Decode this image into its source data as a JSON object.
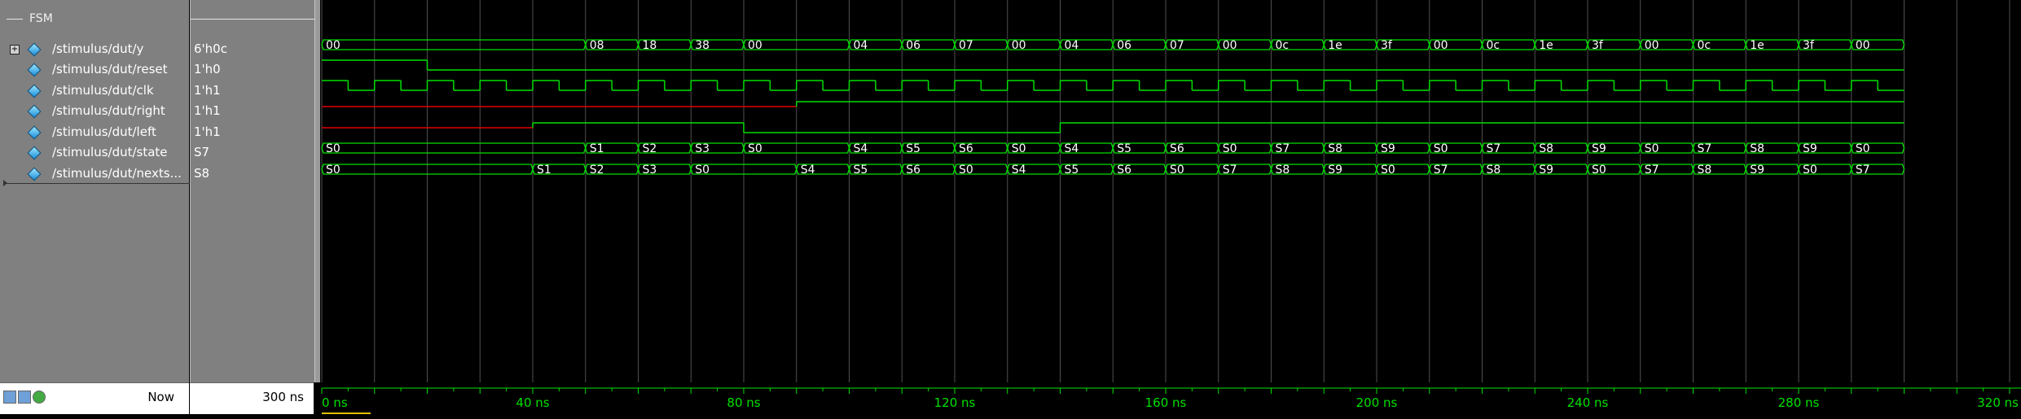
{
  "group": {
    "label": "FSM"
  },
  "signals": [
    {
      "name": "/stimulus/dut/y",
      "value": "6'h0c",
      "expandable": true,
      "expander_glyph": "+"
    },
    {
      "name": "/stimulus/dut/reset",
      "value": "1'h0"
    },
    {
      "name": "/stimulus/dut/clk",
      "value": "1'h1"
    },
    {
      "name": "/stimulus/dut/right",
      "value": "1'h1"
    },
    {
      "name": "/stimulus/dut/left",
      "value": "1'h1"
    },
    {
      "name": "/stimulus/dut/state",
      "value": "S7"
    },
    {
      "name": "/stimulus/dut/nexts...",
      "value": "S8"
    }
  ],
  "cursor": {
    "now_label": "Now",
    "now_time": "300 ns"
  },
  "timeline": {
    "unit": "ns",
    "end_ns": 320,
    "tick_labels": [
      "0 ns",
      "40 ns",
      "80 ns",
      "120 ns",
      "160 ns",
      "200 ns",
      "240 ns",
      "280 ns",
      "320 ns"
    ],
    "label_every_ns": 40,
    "minor_tick_every_ns": 5
  },
  "waves": {
    "sim_end_ns": 300,
    "y": {
      "kind": "bus",
      "segments": [
        {
          "t0": 0,
          "t1": 50,
          "v": "00"
        },
        {
          "t0": 50,
          "t1": 60,
          "v": "08"
        },
        {
          "t0": 60,
          "t1": 70,
          "v": "18"
        },
        {
          "t0": 70,
          "t1": 80,
          "v": "38"
        },
        {
          "t0": 80,
          "t1": 100,
          "v": "00"
        },
        {
          "t0": 100,
          "t1": 110,
          "v": "04"
        },
        {
          "t0": 110,
          "t1": 120,
          "v": "06"
        },
        {
          "t0": 120,
          "t1": 130,
          "v": "07"
        },
        {
          "t0": 130,
          "t1": 140,
          "v": "00"
        },
        {
          "t0": 140,
          "t1": 150,
          "v": "04"
        },
        {
          "t0": 150,
          "t1": 160,
          "v": "06"
        },
        {
          "t0": 160,
          "t1": 170,
          "v": "07"
        },
        {
          "t0": 170,
          "t1": 180,
          "v": "00"
        },
        {
          "t0": 180,
          "t1": 190,
          "v": "0c"
        },
        {
          "t0": 190,
          "t1": 200,
          "v": "1e"
        },
        {
          "t0": 200,
          "t1": 210,
          "v": "3f"
        },
        {
          "t0": 210,
          "t1": 220,
          "v": "00"
        },
        {
          "t0": 220,
          "t1": 230,
          "v": "0c"
        },
        {
          "t0": 230,
          "t1": 240,
          "v": "1e"
        },
        {
          "t0": 240,
          "t1": 250,
          "v": "3f"
        },
        {
          "t0": 250,
          "t1": 260,
          "v": "00"
        },
        {
          "t0": 260,
          "t1": 270,
          "v": "0c"
        },
        {
          "t0": 270,
          "t1": 280,
          "v": "1e"
        },
        {
          "t0": 280,
          "t1": 290,
          "v": "3f"
        },
        {
          "t0": 290,
          "t1": 300,
          "v": "00"
        }
      ]
    },
    "reset": {
      "kind": "bit",
      "segments": [
        {
          "t0": 0,
          "t1": 20,
          "v": 1
        },
        {
          "t0": 20,
          "t1": 300,
          "v": 0
        }
      ]
    },
    "clk": {
      "kind": "clock",
      "period_ns": 10,
      "high_first_ns": 5
    },
    "right": {
      "kind": "bit",
      "segments": [
        {
          "t0": 0,
          "t1": 90,
          "v": "x"
        },
        {
          "t0": 90,
          "t1": 300,
          "v": 1
        }
      ]
    },
    "left": {
      "kind": "bit",
      "segments": [
        {
          "t0": 0,
          "t1": 40,
          "v": "x"
        },
        {
          "t0": 40,
          "t1": 80,
          "v": 1
        },
        {
          "t0": 80,
          "t1": 140,
          "v": 0
        },
        {
          "t0": 140,
          "t1": 300,
          "v": 1
        }
      ]
    },
    "state": {
      "kind": "bus",
      "segments": [
        {
          "t0": 0,
          "t1": 50,
          "v": "S0"
        },
        {
          "t0": 50,
          "t1": 60,
          "v": "S1"
        },
        {
          "t0": 60,
          "t1": 70,
          "v": "S2"
        },
        {
          "t0": 70,
          "t1": 80,
          "v": "S3"
        },
        {
          "t0": 80,
          "t1": 100,
          "v": "S0"
        },
        {
          "t0": 100,
          "t1": 110,
          "v": "S4"
        },
        {
          "t0": 110,
          "t1": 120,
          "v": "S5"
        },
        {
          "t0": 120,
          "t1": 130,
          "v": "S6"
        },
        {
          "t0": 130,
          "t1": 140,
          "v": "S0"
        },
        {
          "t0": 140,
          "t1": 150,
          "v": "S4"
        },
        {
          "t0": 150,
          "t1": 160,
          "v": "S5"
        },
        {
          "t0": 160,
          "t1": 170,
          "v": "S6"
        },
        {
          "t0": 170,
          "t1": 180,
          "v": "S0"
        },
        {
          "t0": 180,
          "t1": 190,
          "v": "S7"
        },
        {
          "t0": 190,
          "t1": 200,
          "v": "S8"
        },
        {
          "t0": 200,
          "t1": 210,
          "v": "S9"
        },
        {
          "t0": 210,
          "t1": 220,
          "v": "S0"
        },
        {
          "t0": 220,
          "t1": 230,
          "v": "S7"
        },
        {
          "t0": 230,
          "t1": 240,
          "v": "S8"
        },
        {
          "t0": 240,
          "t1": 250,
          "v": "S9"
        },
        {
          "t0": 250,
          "t1": 260,
          "v": "S0"
        },
        {
          "t0": 260,
          "t1": 270,
          "v": "S7"
        },
        {
          "t0": 270,
          "t1": 280,
          "v": "S8"
        },
        {
          "t0": 280,
          "t1": 290,
          "v": "S9"
        },
        {
          "t0": 290,
          "t1": 300,
          "v": "S0"
        }
      ]
    },
    "nextstate": {
      "kind": "bus",
      "segments": [
        {
          "t0": 0,
          "t1": 40,
          "v": "S0"
        },
        {
          "t0": 40,
          "t1": 50,
          "v": "S1"
        },
        {
          "t0": 50,
          "t1": 60,
          "v": "S2"
        },
        {
          "t0": 60,
          "t1": 70,
          "v": "S3"
        },
        {
          "t0": 70,
          "t1": 90,
          "v": "S0"
        },
        {
          "t0": 90,
          "t1": 100,
          "v": "S4"
        },
        {
          "t0": 100,
          "t1": 110,
          "v": "S5"
        },
        {
          "t0": 110,
          "t1": 120,
          "v": "S6"
        },
        {
          "t0": 120,
          "t1": 130,
          "v": "S0"
        },
        {
          "t0": 130,
          "t1": 140,
          "v": "S4"
        },
        {
          "t0": 140,
          "t1": 150,
          "v": "S5"
        },
        {
          "t0": 150,
          "t1": 160,
          "v": "S6"
        },
        {
          "t0": 160,
          "t1": 170,
          "v": "S0"
        },
        {
          "t0": 170,
          "t1": 180,
          "v": "S7"
        },
        {
          "t0": 180,
          "t1": 190,
          "v": "S8"
        },
        {
          "t0": 190,
          "t1": 200,
          "v": "S9"
        },
        {
          "t0": 200,
          "t1": 210,
          "v": "S0"
        },
        {
          "t0": 210,
          "t1": 220,
          "v": "S7"
        },
        {
          "t0": 220,
          "t1": 230,
          "v": "S8"
        },
        {
          "t0": 230,
          "t1": 240,
          "v": "S9"
        },
        {
          "t0": 240,
          "t1": 250,
          "v": "S0"
        },
        {
          "t0": 250,
          "t1": 260,
          "v": "S7"
        },
        {
          "t0": 260,
          "t1": 270,
          "v": "S8"
        },
        {
          "t0": 270,
          "t1": 280,
          "v": "S9"
        },
        {
          "t0": 280,
          "t1": 290,
          "v": "S0"
        },
        {
          "t0": 290,
          "t1": 300,
          "v": "S7"
        }
      ]
    }
  },
  "colors": {
    "wave": "#00e000",
    "unknown": "#e00000",
    "grid": "#505050",
    "timeline_text": "#00e000",
    "cursor": "#e0c000"
  }
}
